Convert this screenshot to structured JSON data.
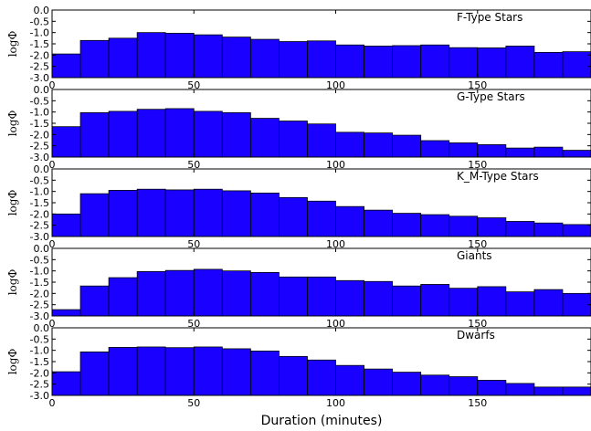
{
  "chart_data": {
    "type": "bar",
    "xlabel": "Duration (minutes)",
    "xlim": [
      0,
      190
    ],
    "xticks": [
      0,
      50,
      100,
      150
    ],
    "bin_width": 10,
    "ylim": [
      -3.0,
      0.0
    ],
    "yticks": [
      "0.0",
      "-0.5",
      "-1.0",
      "-1.5",
      "-2.0",
      "-2.5",
      "-3.0"
    ],
    "bar_color": "#1a00ff",
    "panels": [
      {
        "title": "F-Type Stars",
        "ylabel": "logΦ",
        "x": [
          0,
          10,
          20,
          30,
          40,
          50,
          60,
          70,
          80,
          90,
          100,
          110,
          120,
          130,
          140,
          150,
          160,
          170,
          180
        ],
        "values": [
          -1.95,
          -1.35,
          -1.25,
          -1.0,
          -1.03,
          -1.1,
          -1.2,
          -1.3,
          -1.4,
          -1.37,
          -1.55,
          -1.6,
          -1.58,
          -1.55,
          -1.67,
          -1.68,
          -1.6,
          -1.88,
          -1.85
        ]
      },
      {
        "title": "G-Type Stars",
        "ylabel": "logΦ",
        "x": [
          0,
          10,
          20,
          30,
          40,
          50,
          60,
          70,
          80,
          90,
          100,
          110,
          120,
          130,
          140,
          150,
          160,
          170,
          180
        ],
        "values": [
          -1.65,
          -1.03,
          -0.97,
          -0.88,
          -0.85,
          -0.97,
          -1.03,
          -1.28,
          -1.4,
          -1.53,
          -1.9,
          -1.93,
          -2.03,
          -2.27,
          -2.37,
          -2.45,
          -2.6,
          -2.56,
          -2.7
        ]
      },
      {
        "title": "K_M-Type Stars",
        "ylabel": "logΦ",
        "x": [
          0,
          10,
          20,
          30,
          40,
          50,
          60,
          70,
          80,
          90,
          100,
          110,
          120,
          130,
          140,
          150,
          160,
          170,
          180
        ],
        "values": [
          -2.0,
          -1.1,
          -0.95,
          -0.9,
          -0.93,
          -0.9,
          -0.97,
          -1.07,
          -1.27,
          -1.43,
          -1.67,
          -1.83,
          -1.97,
          -2.03,
          -2.1,
          -2.17,
          -2.33,
          -2.4,
          -2.47
        ]
      },
      {
        "title": "Giants",
        "ylabel": "logΦ",
        "x": [
          0,
          10,
          20,
          30,
          40,
          50,
          60,
          70,
          80,
          90,
          100,
          110,
          120,
          130,
          140,
          150,
          160,
          170,
          180
        ],
        "values": [
          -2.72,
          -1.67,
          -1.3,
          -1.03,
          -0.98,
          -0.93,
          -1.0,
          -1.07,
          -1.27,
          -1.27,
          -1.43,
          -1.47,
          -1.67,
          -1.6,
          -1.77,
          -1.7,
          -1.93,
          -1.83,
          -2.0
        ]
      },
      {
        "title": "Dwarfs",
        "ylabel": "logΦ",
        "x": [
          0,
          10,
          20,
          30,
          40,
          50,
          60,
          70,
          80,
          90,
          100,
          110,
          120,
          130,
          140,
          150,
          160,
          170,
          180
        ],
        "values": [
          -1.95,
          -1.07,
          -0.87,
          -0.85,
          -0.88,
          -0.85,
          -0.93,
          -1.03,
          -1.27,
          -1.43,
          -1.67,
          -1.83,
          -1.97,
          -2.1,
          -2.17,
          -2.33,
          -2.47,
          -2.63,
          -2.63
        ]
      }
    ]
  }
}
